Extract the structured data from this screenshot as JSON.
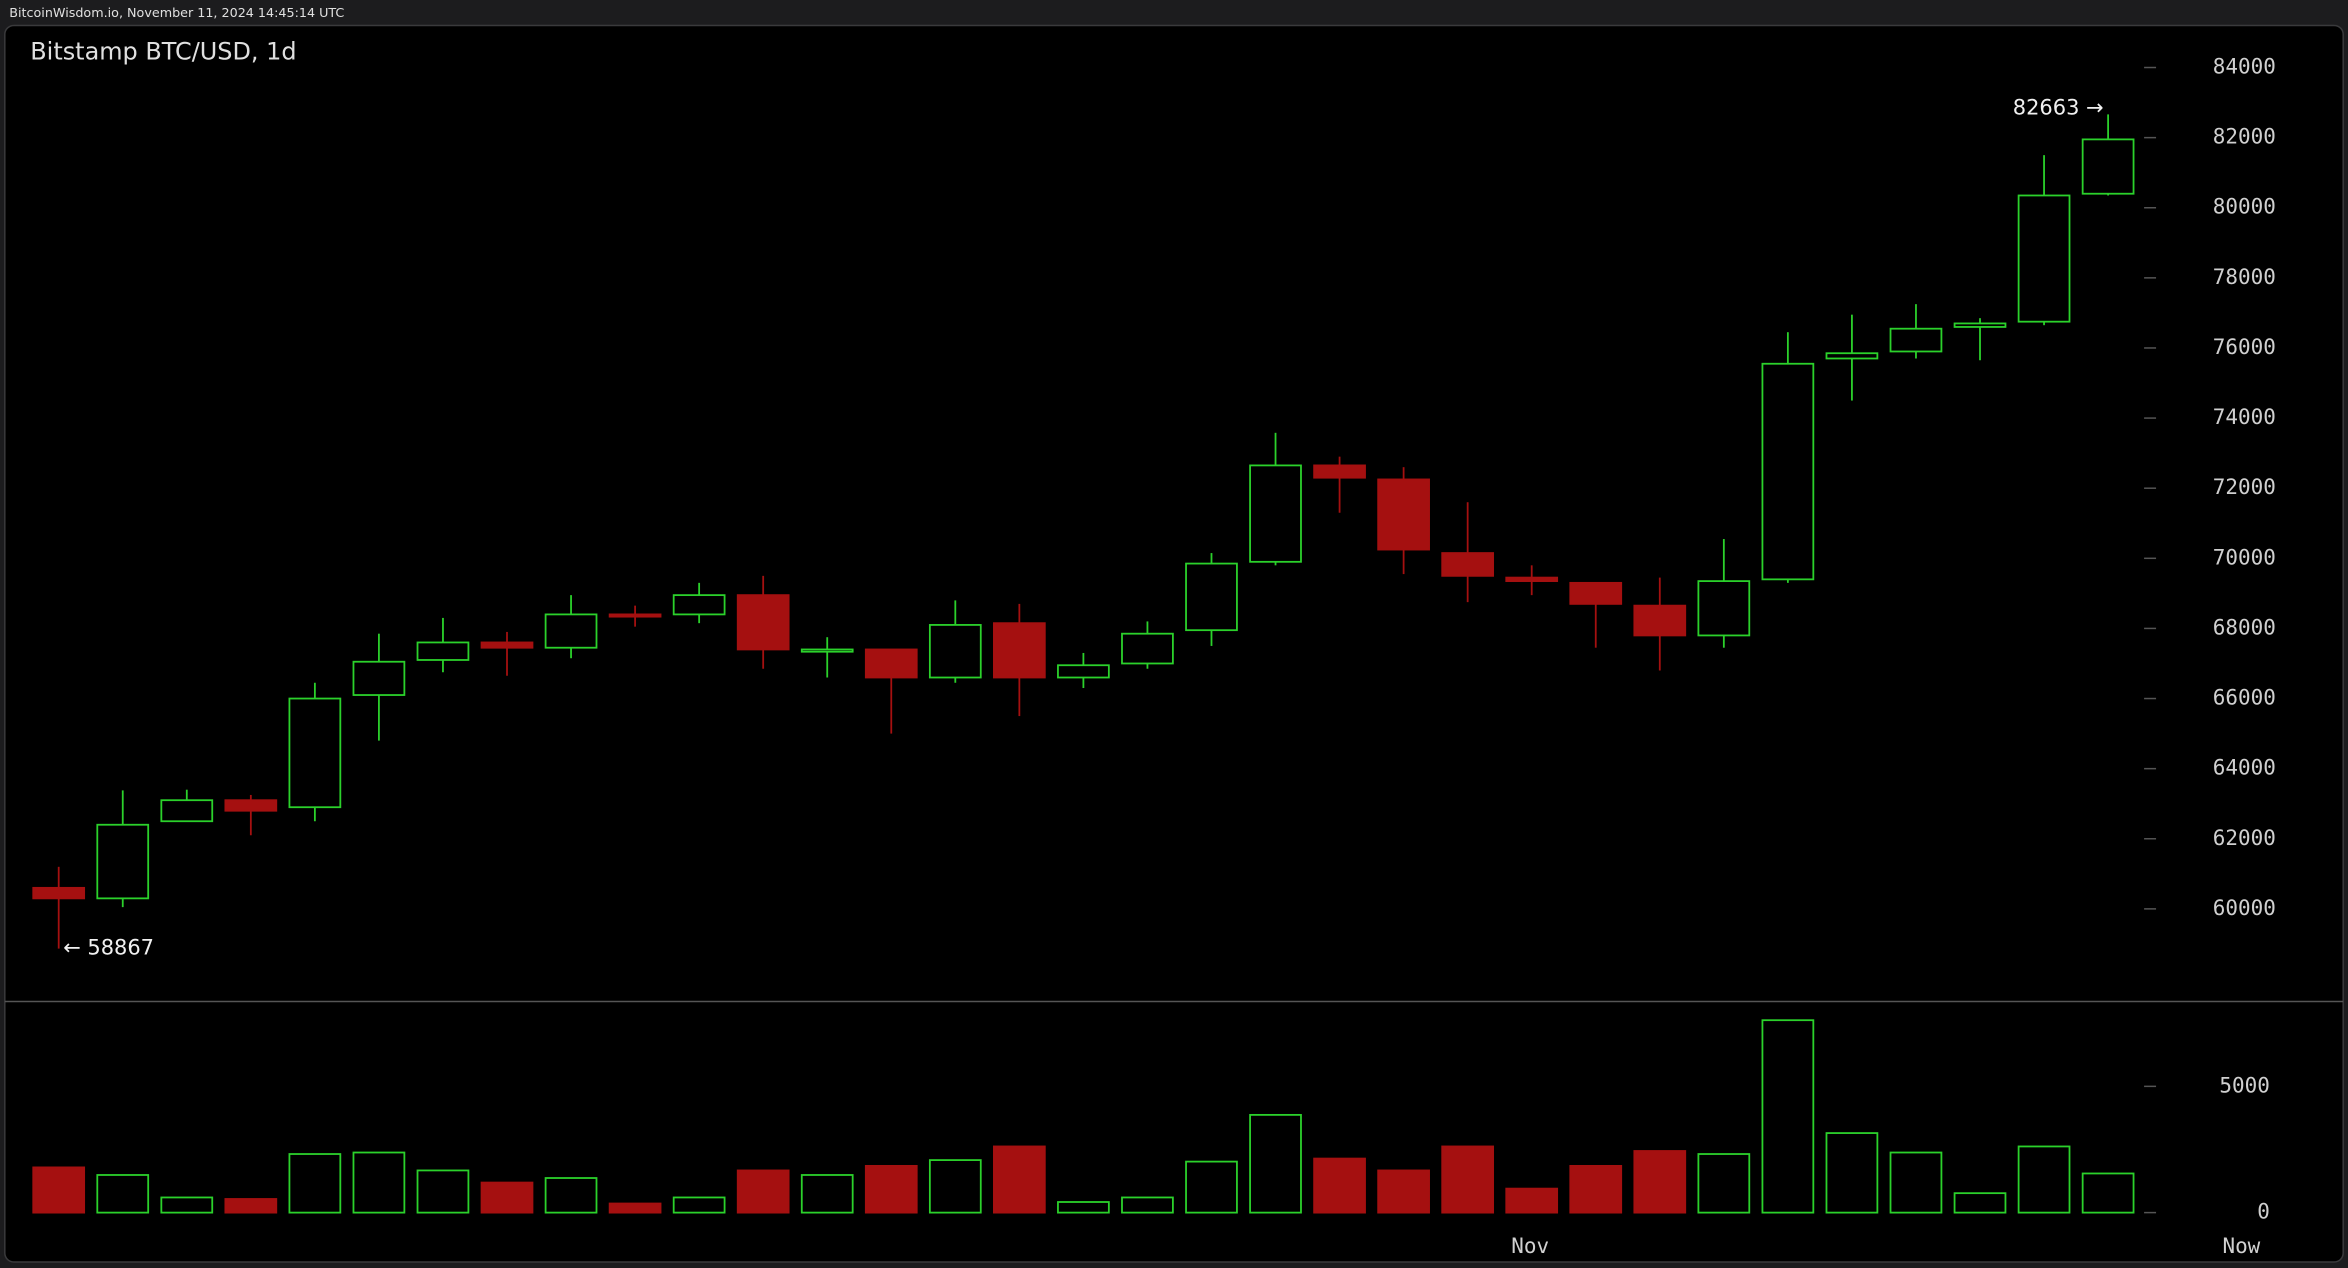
{
  "header": "BitcoinWisdom.io, November 11, 2024 14:45:14 UTC",
  "chart_data": [
    {
      "type": "candlestick",
      "title": "Bitstamp BTC/USD, 1d",
      "open": [
        60600,
        60300,
        62500,
        63100,
        62900,
        66100,
        67100,
        67600,
        67450,
        68400,
        68400,
        68950,
        67350,
        67400,
        66600,
        68150,
        66600,
        67000,
        67950,
        69900,
        72650,
        72250,
        70150,
        69450,
        69300,
        68650,
        67800,
        69400,
        75700,
        75900,
        76600,
        76750,
        80400
      ],
      "high": [
        61200,
        63380,
        63400,
        63250,
        66450,
        67850,
        68300,
        67900,
        68950,
        68650,
        69300,
        69500,
        67750,
        67400,
        68800,
        68700,
        67300,
        68200,
        70150,
        73580,
        72900,
        72600,
        71600,
        69800,
        69300,
        69450,
        70550,
        76450,
        76950,
        77250,
        76850,
        81500,
        82663
      ],
      "low": [
        58867,
        60050,
        62500,
        62100,
        62500,
        64800,
        66750,
        66650,
        67150,
        68050,
        68150,
        66850,
        66600,
        65000,
        66450,
        65500,
        66300,
        66850,
        67500,
        69800,
        71300,
        69550,
        68750,
        68950,
        67450,
        66800,
        67450,
        69300,
        74500,
        75700,
        75650,
        76650,
        80350
      ],
      "close": [
        60300,
        62400,
        63100,
        62800,
        66000,
        67050,
        67600,
        67450,
        68400,
        68350,
        68950,
        67400,
        67400,
        66600,
        68100,
        66600,
        66950,
        67850,
        69850,
        72650,
        72300,
        70250,
        69500,
        69350,
        68700,
        67800,
        69350,
        75550,
        75850,
        76550,
        76700,
        80350,
        81950
      ],
      "up_color": "#2bd12b",
      "down_color": "#a51010",
      "ylim": [
        57400,
        85200
      ],
      "yticks": [
        60000,
        62000,
        64000,
        66000,
        68000,
        70000,
        72000,
        74000,
        76000,
        78000,
        80000,
        82000,
        84000
      ],
      "annotations": [
        {
          "label": "82663 →",
          "value": 82663
        },
        {
          "label": "← 58867",
          "value": 58867
        }
      ]
    },
    {
      "type": "bar",
      "categories": [
        null,
        null,
        null,
        null,
        null,
        null,
        null,
        null,
        null,
        null,
        null,
        null,
        null,
        null,
        null,
        null,
        null,
        null,
        null,
        null,
        null,
        null,
        null,
        "Nov",
        null,
        null,
        null,
        null,
        null,
        null,
        null,
        null,
        null
      ],
      "values": [
        1790,
        1490,
        600,
        540,
        2320,
        2380,
        1670,
        1190,
        1370,
        360,
        600,
        1670,
        1490,
        1850,
        2080,
        2620,
        420,
        600,
        2020,
        3870,
        2140,
        1670,
        2620,
        950,
        1850,
        2440,
        2320,
        7620,
        3150,
        2380,
        770,
        2620,
        1550
      ],
      "ylim": [
        0,
        8300
      ],
      "yticks": [
        0,
        5000
      ],
      "end_label": "Now"
    }
  ]
}
